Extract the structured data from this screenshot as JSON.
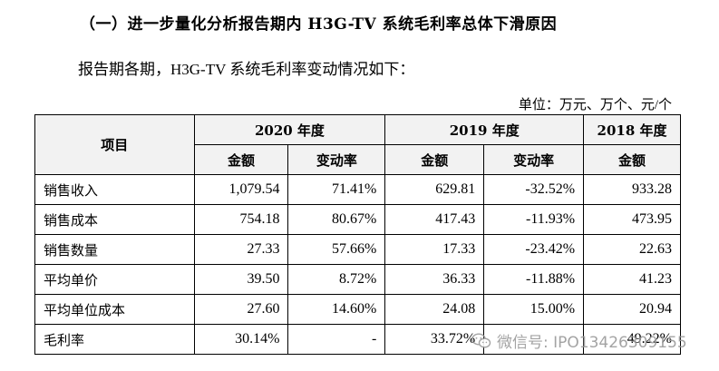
{
  "section_title": "（一）进一步量化分析报告期内 H3G-TV 系统毛利率总体下滑原因",
  "intro": "报告期各期，H3G-TV 系统毛利率变动情况如下：",
  "unit": "单位：万元、万个、元/个",
  "table": {
    "header": {
      "item": "项目",
      "year_2020": "2020 年度",
      "year_2019": "2019 年度",
      "year_2018": "2018 年度",
      "amount": "金额",
      "change_rate": "变动率"
    },
    "rows": [
      {
        "label": "销售收入",
        "a2020": "1,079.54",
        "r2020": "71.41%",
        "a2019": "629.81",
        "r2019": "-32.52%",
        "a2018": "933.28"
      },
      {
        "label": "销售成本",
        "a2020": "754.18",
        "r2020": "80.67%",
        "a2019": "417.43",
        "r2019": "-11.93%",
        "a2018": "473.95"
      },
      {
        "label": "销售数量",
        "a2020": "27.33",
        "r2020": "57.66%",
        "a2019": "17.33",
        "r2019": "-23.42%",
        "a2018": "22.63"
      },
      {
        "label": "平均单价",
        "a2020": "39.50",
        "r2020": "8.72%",
        "a2019": "36.33",
        "r2019": "-11.88%",
        "a2018": "41.23"
      },
      {
        "label": "平均单位成本",
        "a2020": "27.60",
        "r2020": "14.60%",
        "a2019": "24.08",
        "r2019": "15.00%",
        "a2018": "20.94"
      },
      {
        "label": "毛利率",
        "a2020": "30.14%",
        "r2020": "-",
        "a2019": "33.72%",
        "r2019": "",
        "a2018": "49.22%"
      }
    ]
  },
  "watermark": {
    "icon": "wechat-icon",
    "text": "微信号: IPO13426309155"
  }
}
